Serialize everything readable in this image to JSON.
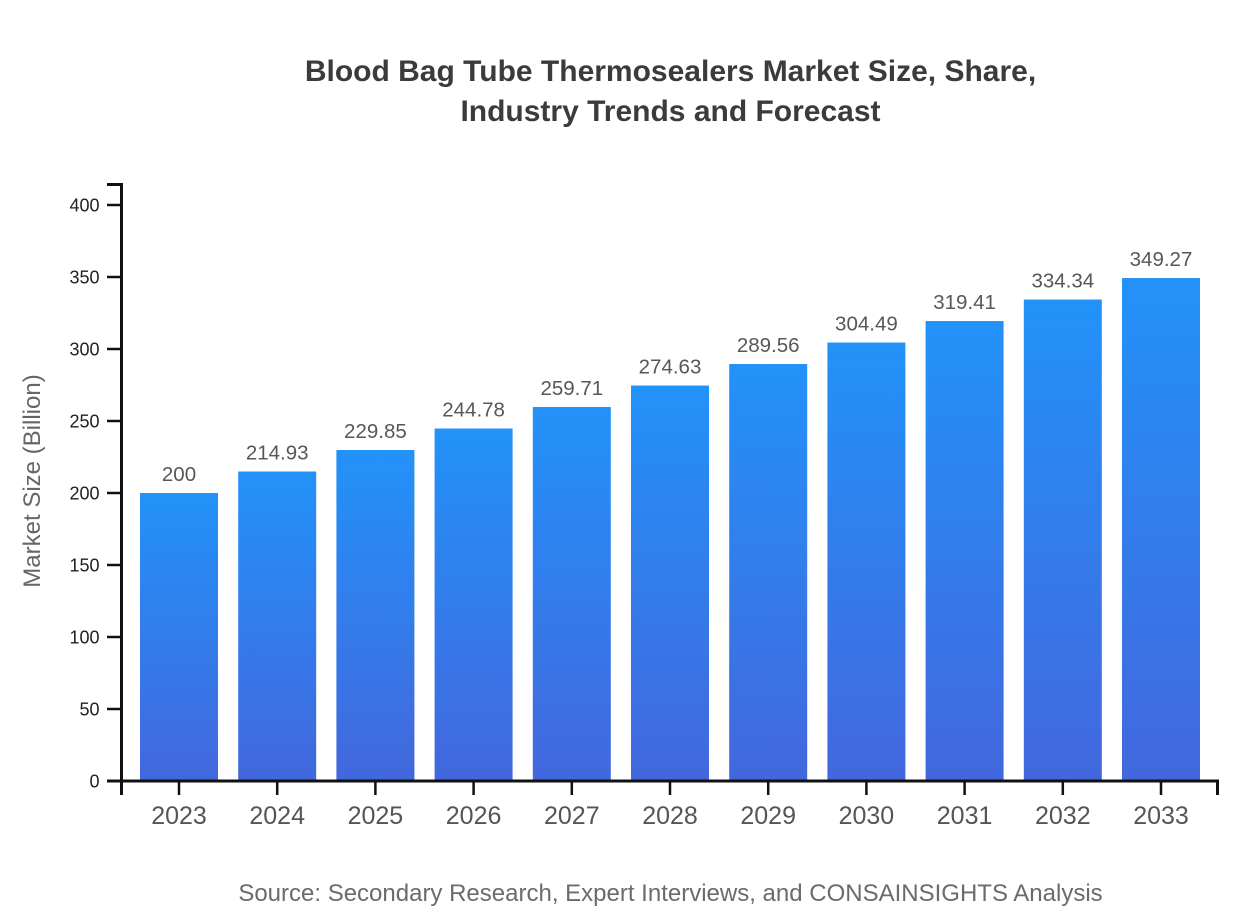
{
  "chart_data": {
    "type": "bar",
    "title": "Blood Bag Tube Thermosealers Market Size, Share, Industry Trends and Forecast",
    "title_lines": [
      "Blood Bag Tube Thermosealers Market Size, Share,",
      "Industry Trends and Forecast"
    ],
    "xlabel": "",
    "ylabel": "Market Size (Billion)",
    "source": "Source: Secondary Research, Expert Interviews, and CONSAINSIGHTS Analysis",
    "categories": [
      "2023",
      "2024",
      "2025",
      "2026",
      "2027",
      "2028",
      "2029",
      "2030",
      "2031",
      "2032",
      "2033"
    ],
    "values": [
      200,
      214.93,
      229.85,
      244.78,
      259.71,
      274.63,
      289.56,
      304.49,
      319.41,
      334.34,
      349.27
    ],
    "value_labels": [
      "200",
      "214.93",
      "229.85",
      "244.78",
      "259.71",
      "274.63",
      "289.56",
      "304.49",
      "319.41",
      "334.34",
      "349.27"
    ],
    "yticks": [
      0,
      50,
      100,
      150,
      200,
      250,
      300,
      350,
      400
    ],
    "ylim": [
      0,
      400
    ],
    "grid": false,
    "legend": "none",
    "colors": {
      "bar_gradient_top": "#2292f9",
      "bar_gradient_bottom": "#4367dd",
      "axis": "#111111",
      "y_tick_label": "#222222",
      "x_tick_label": "#555555",
      "value_label": "#575757",
      "title": "#3b3b3b",
      "axis_label": "#666666",
      "source": "#6b6b6b"
    }
  }
}
